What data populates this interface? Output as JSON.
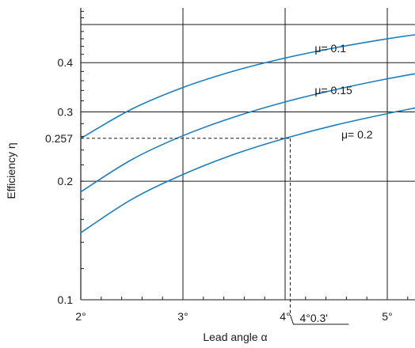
{
  "chart_data": {
    "type": "line",
    "xlabel": "Lead angle α",
    "ylabel": "Efficiency η",
    "xlim": [
      2,
      5.3
    ],
    "ylim": [
      0.1,
      0.6
    ],
    "x_ticks": [
      {
        "value": 2,
        "label": "2°"
      },
      {
        "value": 3,
        "label": "3°"
      },
      {
        "value": 4,
        "label": "4°"
      },
      {
        "value": 5,
        "label": "5°"
      }
    ],
    "y_ticks": [
      {
        "value": 0.1,
        "label": "0.1"
      },
      {
        "value": 0.2,
        "label": "0.2"
      },
      {
        "value": 0.257,
        "label": "0.257"
      },
      {
        "value": 0.3,
        "label": "0.3"
      },
      {
        "value": 0.4,
        "label": "0.4"
      }
    ],
    "y_gridlines": [
      0.1,
      0.2,
      0.3,
      0.4,
      0.5
    ],
    "x_gridlines": [
      2,
      3,
      4,
      5
    ],
    "grid": true,
    "series": [
      {
        "name": "μ= 0.1",
        "color": "#1a7fc1",
        "x": [
          2,
          2.5,
          3,
          3.5,
          4,
          4.5,
          5,
          5.3
        ],
        "y": [
          0.257,
          0.305,
          0.346,
          0.381,
          0.411,
          0.437,
          0.46,
          0.472
        ]
      },
      {
        "name": "μ= 0.15",
        "color": "#1a7fc1",
        "x": [
          2,
          2.5,
          3,
          3.5,
          4,
          4.5,
          5,
          5.3
        ],
        "y": [
          0.188,
          0.227,
          0.261,
          0.291,
          0.318,
          0.342,
          0.364,
          0.376
        ]
      },
      {
        "name": "μ= 0.2",
        "color": "#1a7fc1",
        "x": [
          2,
          2.5,
          3,
          3.5,
          4,
          4.5,
          5,
          5.3
        ],
        "y": [
          0.148,
          0.18,
          0.208,
          0.234,
          0.257,
          0.278,
          0.297,
          0.308
        ]
      }
    ],
    "annotation": {
      "label": "4°0.3'",
      "x": 4.05,
      "y": 0.257
    }
  }
}
